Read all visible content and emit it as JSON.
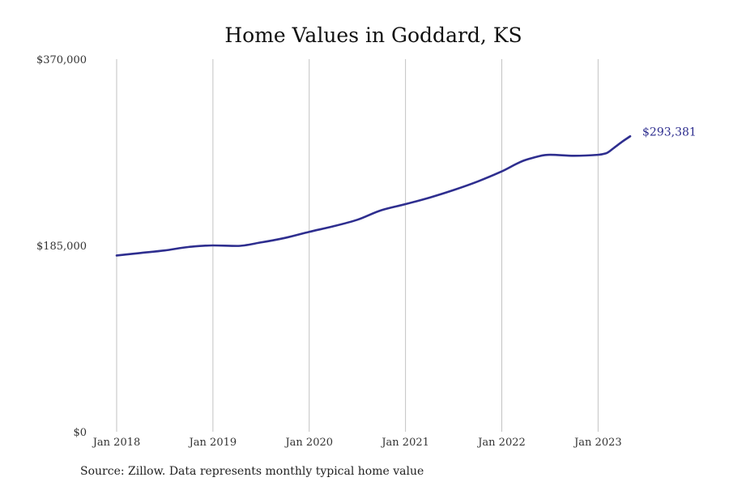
{
  "chart_data": {
    "type": "line",
    "title": "Home Values in Goddard, KS",
    "xlabel": "",
    "ylabel": "",
    "x_tick_labels": [
      "Jan 2018",
      "Jan 2019",
      "Jan 2020",
      "Jan 2021",
      "Jan 2022",
      "Jan 2023"
    ],
    "x_tick_dates": [
      "2018-01",
      "2019-01",
      "2020-01",
      "2021-01",
      "2022-01",
      "2023-01"
    ],
    "y_tick_labels": [
      "$0",
      "$185,000",
      "$370,000"
    ],
    "y_tick_values": [
      0,
      185000,
      370000
    ],
    "ylim": [
      0,
      370000
    ],
    "xlim": [
      "2018-01",
      "2023-05"
    ],
    "grid": "vertical",
    "legend": "none",
    "series_color": "#2e2e8f",
    "end_label": "$293,381",
    "series": [
      {
        "x": [
          "2018-01",
          "2018-04",
          "2018-07",
          "2018-10",
          "2019-01",
          "2019-04",
          "2019-07",
          "2019-10",
          "2020-01",
          "2020-04",
          "2020-07",
          "2020-10",
          "2021-01",
          "2021-04",
          "2021-07",
          "2021-10",
          "2022-01",
          "2022-04",
          "2022-07",
          "2022-10",
          "2023-01",
          "2023-02",
          "2023-03",
          "2023-04",
          "2023-05"
        ],
        "values": [
          175000,
          177500,
          180000,
          183500,
          185000,
          184500,
          188000,
          192500,
          198500,
          204000,
          210500,
          220000,
          226000,
          232500,
          240000,
          248500,
          258500,
          270000,
          275000,
          274000,
          275000,
          276500,
          282000,
          288000,
          293381
        ]
      }
    ]
  },
  "source": "Source: Zillow. Data represents monthly typical home value"
}
